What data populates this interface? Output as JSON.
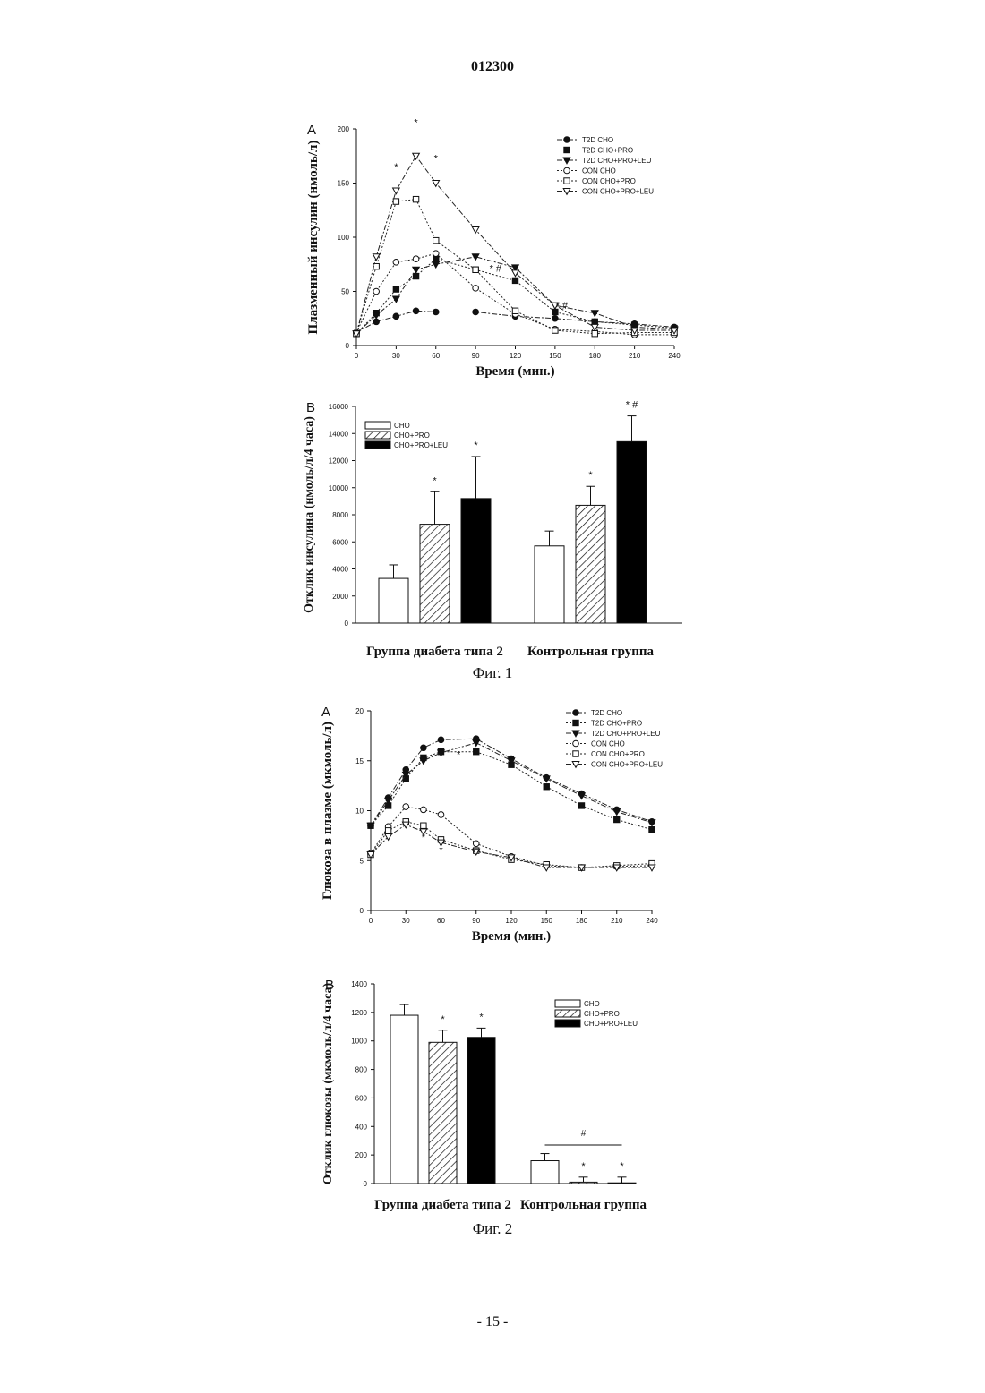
{
  "page": {
    "number": "012300",
    "footer": "- 15 -"
  },
  "captions": {
    "fig1": "Фиг. 1",
    "fig2": "Фиг. 2"
  },
  "chart_data": [
    {
      "id": "fig1a",
      "type": "line",
      "panel": "A",
      "title": "",
      "xlabel": "Время (мин.)",
      "ylabel": "Плазменный инсулин (нмоль/л)",
      "xlim": [
        0,
        240
      ],
      "ylim": [
        0,
        200
      ],
      "xticks": [
        0,
        30,
        60,
        90,
        120,
        150,
        180,
        210,
        240
      ],
      "yticks": [
        0,
        50,
        100,
        150,
        200
      ],
      "x": [
        0,
        15,
        30,
        45,
        60,
        90,
        120,
        150,
        180,
        210,
        240
      ],
      "legend": "top-right",
      "series": [
        {
          "name": "T2D CHO",
          "marker": "circle-filled",
          "dash": "dashdot",
          "values": [
            12,
            22,
            27,
            32,
            31,
            31,
            27,
            25,
            22,
            20,
            17
          ]
        },
        {
          "name": "T2D CHO+PRO",
          "marker": "square-filled",
          "dash": "dot",
          "values": [
            11,
            30,
            52,
            64,
            80,
            70,
            60,
            31,
            22,
            19,
            16
          ]
        },
        {
          "name": "T2D CHO+PRO+LEU",
          "marker": "triangle-filled",
          "dash": "dashdot",
          "values": [
            11,
            28,
            43,
            70,
            75,
            82,
            72,
            37,
            30,
            17,
            15
          ]
        },
        {
          "name": "CON CHO",
          "marker": "circle-open",
          "dash": "dot",
          "values": [
            12,
            50,
            77,
            80,
            85,
            53,
            29,
            15,
            13,
            10,
            10
          ]
        },
        {
          "name": "CON CHO+PRO",
          "marker": "square-open",
          "dash": "dot",
          "values": [
            11,
            73,
            133,
            135,
            97,
            70,
            32,
            14,
            11,
            12,
            12
          ]
        },
        {
          "name": "CON CHO+PRO+LEU",
          "marker": "triangle-open",
          "dash": "dashdot",
          "values": [
            11,
            82,
            143,
            175,
            150,
            107,
            67,
            37,
            17,
            14,
            14
          ]
        }
      ],
      "annotations": [
        {
          "text": "*",
          "x": 30,
          "y": 162
        },
        {
          "text": "*",
          "x": 45,
          "y": 203
        },
        {
          "text": "*",
          "x": 60,
          "y": 170
        },
        {
          "text": "* #",
          "x": 105,
          "y": 68
        },
        {
          "text": "* #",
          "x": 155,
          "y": 34
        }
      ]
    },
    {
      "id": "fig1b",
      "type": "bar",
      "panel": "B",
      "title": "",
      "xlabel": "",
      "ylabel": "Отклик инсулина (нмоль/л/4 часа)",
      "ylim": [
        0,
        16000
      ],
      "yticks": [
        0,
        2000,
        4000,
        6000,
        8000,
        10000,
        12000,
        14000,
        16000
      ],
      "categories": [
        "Группа диабета типа 2",
        "Контрольная группа"
      ],
      "legend": "top-left",
      "series": [
        {
          "name": "CHO",
          "pattern": "open",
          "values": [
            3300,
            5700
          ],
          "errors": [
            1000,
            1100
          ],
          "marks": [
            "",
            ""
          ]
        },
        {
          "name": "CHO+PRO",
          "pattern": "hatched",
          "values": [
            7300,
            8700
          ],
          "errors": [
            2400,
            1400
          ],
          "marks": [
            "*",
            "*"
          ]
        },
        {
          "name": "CHO+PRO+LEU",
          "pattern": "filled",
          "values": [
            9200,
            13400
          ],
          "errors": [
            3100,
            1900
          ],
          "marks": [
            "*",
            "* #"
          ]
        }
      ]
    },
    {
      "id": "fig2a",
      "type": "line",
      "panel": "A",
      "title": "",
      "xlabel": "Время (мин.)",
      "ylabel": "Глюкоза в плазме (мкмоль/л)",
      "xlim": [
        0,
        240
      ],
      "ylim": [
        0,
        20
      ],
      "xticks": [
        0,
        30,
        60,
        90,
        120,
        150,
        180,
        210,
        240
      ],
      "yticks": [
        0,
        5,
        10,
        15,
        20
      ],
      "x": [
        0,
        15,
        30,
        45,
        60,
        90,
        120,
        150,
        180,
        210,
        240
      ],
      "legend": "top-right",
      "series": [
        {
          "name": "T2D CHO",
          "marker": "circle-filled",
          "dash": "dashdot",
          "values": [
            8.5,
            11.3,
            14.1,
            16.3,
            17.1,
            17.2,
            15.2,
            13.3,
            11.7,
            10.1,
            8.9
          ]
        },
        {
          "name": "T2D CHO+PRO",
          "marker": "square-filled",
          "dash": "dot",
          "values": [
            8.5,
            10.5,
            13.2,
            15.3,
            15.9,
            15.9,
            14.6,
            12.4,
            10.5,
            9.1,
            8.1
          ]
        },
        {
          "name": "T2D CHO+PRO+LEU",
          "marker": "triangle-filled",
          "dash": "dashdot",
          "values": [
            8.5,
            11.0,
            13.6,
            15.0,
            15.8,
            16.8,
            15.0,
            13.2,
            11.5,
            9.9,
            8.8
          ]
        },
        {
          "name": "CON CHO",
          "marker": "circle-open",
          "dash": "dot",
          "values": [
            5.7,
            8.4,
            10.4,
            10.1,
            9.6,
            6.7,
            5.4,
            4.5,
            4.3,
            4.4,
            4.5
          ]
        },
        {
          "name": "CON CHO+PRO",
          "marker": "square-open",
          "dash": "dot",
          "values": [
            5.6,
            8.0,
            8.9,
            8.5,
            7.1,
            6.0,
            5.1,
            4.6,
            4.3,
            4.5,
            4.7
          ]
        },
        {
          "name": "CON CHO+PRO+LEU",
          "marker": "triangle-open",
          "dash": "dashdot",
          "values": [
            5.6,
            7.4,
            8.6,
            7.9,
            6.8,
            5.9,
            5.3,
            4.3,
            4.3,
            4.3,
            4.3
          ]
        }
      ],
      "annotations": [
        {
          "text": "*",
          "x": 75,
          "y": 15.3
        },
        {
          "text": "*",
          "x": 45,
          "y": 7.0
        },
        {
          "text": "*",
          "x": 60,
          "y": 5.7
        }
      ]
    },
    {
      "id": "fig2b",
      "type": "bar",
      "panel": "B",
      "title": "",
      "xlabel": "",
      "ylabel": "Отклик глюкозы (мкмоль/л/4 часа)",
      "ylim": [
        0,
        1400
      ],
      "yticks": [
        0,
        200,
        400,
        600,
        800,
        1000,
        1200,
        1400
      ],
      "categories": [
        "Группа диабета типа 2",
        "Контрольная группа"
      ],
      "legend": "top-right",
      "series": [
        {
          "name": "CHO",
          "pattern": "open",
          "values": [
            1180,
            160
          ],
          "errors": [
            75,
            50
          ],
          "marks": [
            "",
            ""
          ]
        },
        {
          "name": "CHO+PRO",
          "pattern": "hatched",
          "values": [
            990,
            10
          ],
          "errors": [
            85,
            35
          ],
          "marks": [
            "*",
            "*"
          ]
        },
        {
          "name": "CHO+PRO+LEU",
          "pattern": "filled",
          "values": [
            1025,
            5
          ],
          "errors": [
            65,
            40
          ],
          "marks": [
            "*",
            "*"
          ]
        }
      ],
      "bracket": {
        "text": "#",
        "y": 270
      }
    }
  ]
}
